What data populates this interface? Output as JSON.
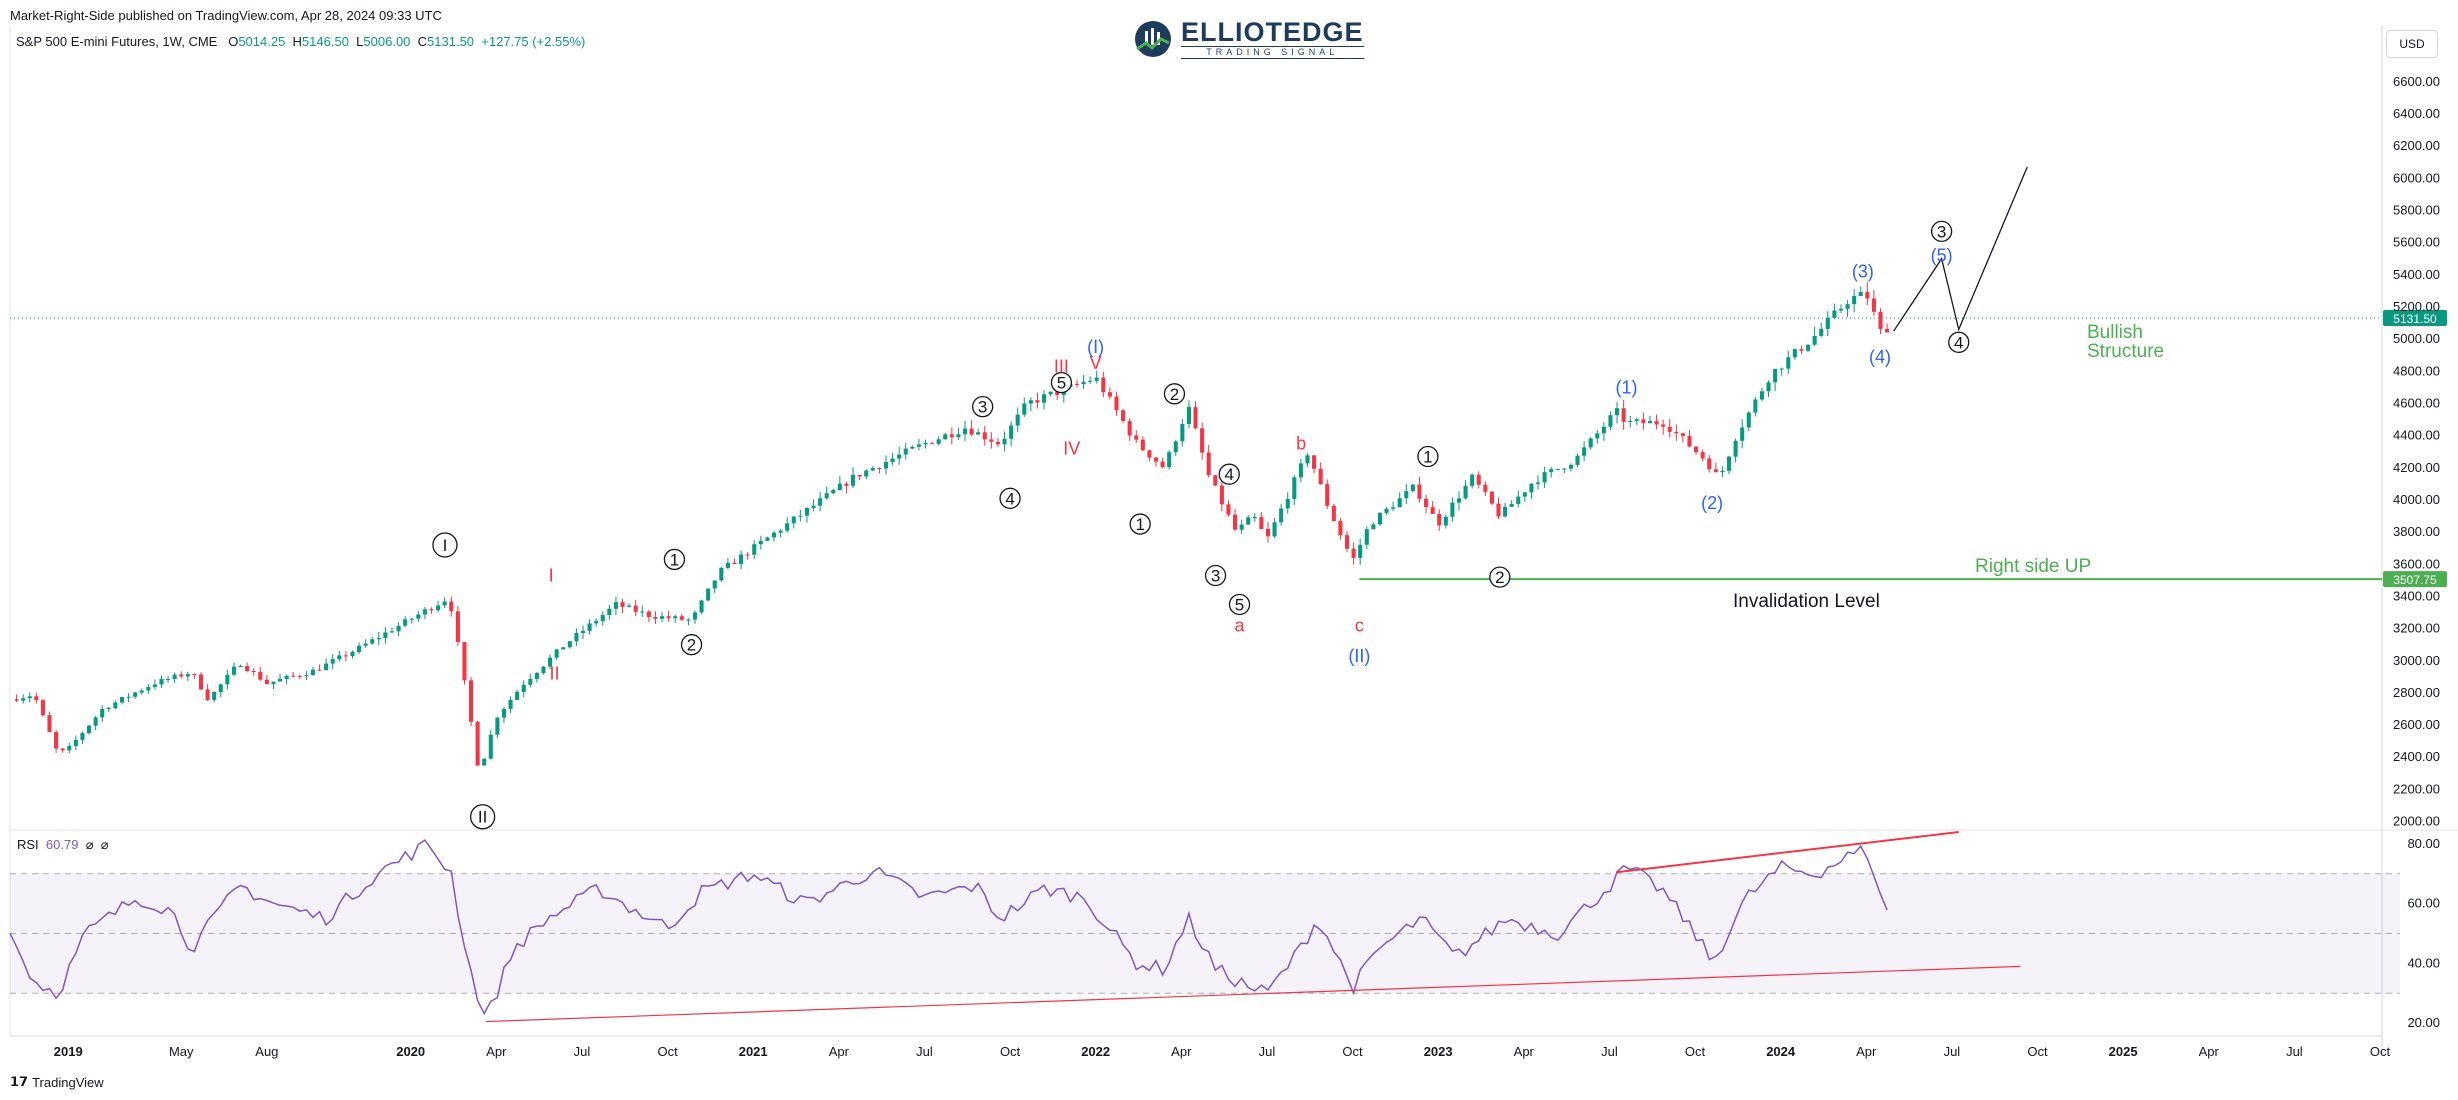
{
  "header": {
    "published": "Market-Right-Side published on TradingView.com, Apr 28, 2024 09:33 UTC",
    "symbol": "S&P 500 E-mini Futures, 1W, CME",
    "o_label": "O",
    "o": "5014.25",
    "h_label": "H",
    "h": "5146.50",
    "l_label": "L",
    "l": "5006.00",
    "c_label": "C",
    "c": "5131.50",
    "change": "+127.75 (+2.55%)"
  },
  "logo": {
    "brand_a": "ELLIOT",
    "brand_b": "EDGE",
    "tagline": "TRADING SIGNAL"
  },
  "currency": "USD",
  "footer": {
    "brand": "TradingView"
  },
  "rsi": {
    "label": "RSI",
    "value": "60.79",
    "extra1": "⌀",
    "extra2": "⌀"
  },
  "colors": {
    "up": "#089981",
    "down": "#f23645",
    "rsi": "#7e57c2",
    "green": "#4caf50",
    "blue": "#2962ff",
    "red": "#f23645"
  },
  "chart_data": {
    "type": "candlestick",
    "title": "S&P 500 E-mini Futures, 1W, CME",
    "price_axis": [
      "6600.00",
      "6400.00",
      "6200.00",
      "6000.00",
      "5800.00",
      "5600.00",
      "5400.00",
      "5200.00",
      "5000.00",
      "4800.00",
      "4600.00",
      "4400.00",
      "4200.00",
      "4000.00",
      "3800.00",
      "3600.00",
      "3400.00",
      "3200.00",
      "3000.00",
      "2800.00",
      "2600.00",
      "2400.00",
      "2200.00",
      "2000.00"
    ],
    "ylim": [
      1960,
      6860
    ],
    "rsi_axis": [
      "80.00",
      "60.00",
      "40.00",
      "20.00"
    ],
    "rsi_lim": [
      16,
      84
    ],
    "time_axis": [
      {
        "label": "2019",
        "t": 2019.0,
        "bold": true
      },
      {
        "label": "May",
        "t": 2019.33
      },
      {
        "label": "Aug",
        "t": 2019.58
      },
      {
        "label": "2020",
        "t": 2020.0,
        "bold": true
      },
      {
        "label": "Apr",
        "t": 2020.25
      },
      {
        "label": "Jul",
        "t": 2020.5
      },
      {
        "label": "Oct",
        "t": 2020.75
      },
      {
        "label": "2021",
        "t": 2021.0,
        "bold": true
      },
      {
        "label": "Apr",
        "t": 2021.25
      },
      {
        "label": "Jul",
        "t": 2021.5
      },
      {
        "label": "Oct",
        "t": 2021.75
      },
      {
        "label": "2022",
        "t": 2022.0,
        "bold": true
      },
      {
        "label": "Apr",
        "t": 2022.25
      },
      {
        "label": "Jul",
        "t": 2022.5
      },
      {
        "label": "Oct",
        "t": 2022.75
      },
      {
        "label": "2023",
        "t": 2023.0,
        "bold": true
      },
      {
        "label": "Apr",
        "t": 2023.25
      },
      {
        "label": "Jul",
        "t": 2023.5
      },
      {
        "label": "Oct",
        "t": 2023.75
      },
      {
        "label": "2024",
        "t": 2024.0,
        "bold": true
      },
      {
        "label": "Apr",
        "t": 2024.25
      },
      {
        "label": "Jul",
        "t": 2024.5
      },
      {
        "label": "Oct",
        "t": 2024.75
      },
      {
        "label": "2025",
        "t": 2025.0,
        "bold": true
      },
      {
        "label": "Apr",
        "t": 2025.25
      },
      {
        "label": "Jul",
        "t": 2025.5
      },
      {
        "label": "Oct",
        "t": 2025.75
      }
    ],
    "xlim": [
      2018.83,
      2025.75
    ],
    "price_anchors": [
      [
        2018.83,
        2760
      ],
      [
        2018.9,
        2790
      ],
      [
        2018.97,
        2420
      ],
      [
        2019.0,
        2450
      ],
      [
        2019.1,
        2700
      ],
      [
        2019.25,
        2860
      ],
      [
        2019.36,
        2930
      ],
      [
        2019.41,
        2760
      ],
      [
        2019.5,
        2990
      ],
      [
        2019.58,
        2860
      ],
      [
        2019.72,
        2940
      ],
      [
        2019.85,
        3080
      ],
      [
        2020.1,
        3380
      ],
      [
        2020.12,
        3320
      ],
      [
        2020.17,
        2700
      ],
      [
        2020.2,
        2300
      ],
      [
        2020.25,
        2650
      ],
      [
        2020.33,
        2860
      ],
      [
        2020.45,
        3100
      ],
      [
        2020.6,
        3350
      ],
      [
        2020.7,
        3280
      ],
      [
        2020.82,
        3250
      ],
      [
        2020.9,
        3550
      ],
      [
        2021.1,
        3850
      ],
      [
        2021.3,
        4150
      ],
      [
        2021.5,
        4350
      ],
      [
        2021.62,
        4450
      ],
      [
        2021.72,
        4350
      ],
      [
        2021.8,
        4600
      ],
      [
        2021.95,
        4720
      ],
      [
        2022.0,
        4760
      ],
      [
        2022.12,
        4350
      ],
      [
        2022.2,
        4200
      ],
      [
        2022.27,
        4580
      ],
      [
        2022.33,
        4150
      ],
      [
        2022.41,
        3800
      ],
      [
        2022.46,
        3900
      ],
      [
        2022.5,
        3750
      ],
      [
        2022.55,
        3980
      ],
      [
        2022.62,
        4300
      ],
      [
        2022.68,
        3950
      ],
      [
        2022.75,
        3620
      ],
      [
        2022.8,
        3850
      ],
      [
        2022.93,
        4080
      ],
      [
        2023.0,
        3850
      ],
      [
        2023.1,
        4140
      ],
      [
        2023.18,
        3900
      ],
      [
        2023.28,
        4120
      ],
      [
        2023.4,
        4250
      ],
      [
        2023.52,
        4550
      ],
      [
        2023.55,
        4480
      ],
      [
        2023.66,
        4480
      ],
      [
        2023.78,
        4250
      ],
      [
        2023.82,
        4130
      ],
      [
        2023.87,
        4400
      ],
      [
        2023.97,
        4780
      ],
      [
        2024.1,
        5020
      ],
      [
        2024.2,
        5250
      ],
      [
        2024.25,
        5280
      ],
      [
        2024.3,
        5000
      ],
      [
        2024.32,
        5131.5
      ]
    ],
    "last_price": "5131.50",
    "invalidation_price": "3507.75",
    "rsi_anchors": [
      [
        2018.83,
        50
      ],
      [
        2018.9,
        34
      ],
      [
        2018.97,
        30
      ],
      [
        2019.05,
        50
      ],
      [
        2019.2,
        62
      ],
      [
        2019.3,
        58
      ],
      [
        2019.36,
        45
      ],
      [
        2019.5,
        66
      ],
      [
        2019.6,
        60
      ],
      [
        2019.75,
        55
      ],
      [
        2019.9,
        70
      ],
      [
        2020.05,
        80
      ],
      [
        2020.12,
        70
      ],
      [
        2020.15,
        50
      ],
      [
        2020.18,
        35
      ],
      [
        2020.22,
        21
      ],
      [
        2020.3,
        45
      ],
      [
        2020.4,
        55
      ],
      [
        2020.55,
        65
      ],
      [
        2020.65,
        58
      ],
      [
        2020.75,
        52
      ],
      [
        2020.85,
        64
      ],
      [
        2021.0,
        70
      ],
      [
        2021.15,
        60
      ],
      [
        2021.35,
        71
      ],
      [
        2021.5,
        62
      ],
      [
        2021.65,
        66
      ],
      [
        2021.72,
        55
      ],
      [
        2021.85,
        65
      ],
      [
        2021.97,
        62
      ],
      [
        2022.05,
        50
      ],
      [
        2022.12,
        40
      ],
      [
        2022.2,
        38
      ],
      [
        2022.27,
        55
      ],
      [
        2022.35,
        38
      ],
      [
        2022.45,
        32
      ],
      [
        2022.5,
        30
      ],
      [
        2022.58,
        42
      ],
      [
        2022.65,
        55
      ],
      [
        2022.75,
        32
      ],
      [
        2022.83,
        45
      ],
      [
        2022.95,
        55
      ],
      [
        2023.05,
        42
      ],
      [
        2023.2,
        55
      ],
      [
        2023.35,
        50
      ],
      [
        2023.5,
        66
      ],
      [
        2023.55,
        72
      ],
      [
        2023.65,
        65
      ],
      [
        2023.75,
        50
      ],
      [
        2023.8,
        40
      ],
      [
        2023.9,
        62
      ],
      [
        2024.0,
        72
      ],
      [
        2024.1,
        70
      ],
      [
        2024.2,
        76
      ],
      [
        2024.25,
        78
      ],
      [
        2024.28,
        68
      ],
      [
        2024.3,
        57
      ],
      [
        2024.32,
        60.79
      ]
    ],
    "wave_labels": [
      {
        "text": "I",
        "t": 2020.1,
        "p": 3720,
        "color": "black",
        "circle": true,
        "double": true
      },
      {
        "text": "II",
        "t": 2020.21,
        "p": 2030,
        "color": "black",
        "circle": true,
        "double": true
      },
      {
        "text": "I",
        "t": 2020.41,
        "p": 3530,
        "color": "red"
      },
      {
        "text": "II",
        "t": 2020.42,
        "p": 2920,
        "color": "red"
      },
      {
        "text": "1",
        "t": 2020.77,
        "p": 3630,
        "color": "black",
        "circle": true
      },
      {
        "text": "2",
        "t": 2020.82,
        "p": 3100,
        "color": "black",
        "circle": true
      },
      {
        "text": "3",
        "t": 2021.67,
        "p": 4580,
        "color": "black",
        "circle": true
      },
      {
        "text": "4",
        "t": 2021.75,
        "p": 4010,
        "color": "black",
        "circle": true
      },
      {
        "text": "5",
        "t": 2021.9,
        "p": 4730,
        "color": "black",
        "circle": true
      },
      {
        "text": "III",
        "t": 2021.9,
        "p": 4830,
        "color": "red"
      },
      {
        "text": "IV",
        "t": 2021.93,
        "p": 4320,
        "color": "red"
      },
      {
        "text": "V",
        "t": 2022.0,
        "p": 4850,
        "color": "red"
      },
      {
        "text": "(I)",
        "t": 2022.0,
        "p": 4950,
        "color": "blue"
      },
      {
        "text": "2",
        "t": 2022.23,
        "p": 4660,
        "color": "black",
        "circle": true
      },
      {
        "text": "1",
        "t": 2022.13,
        "p": 3850,
        "color": "black",
        "circle": true
      },
      {
        "text": "4",
        "t": 2022.39,
        "p": 4160,
        "color": "black",
        "circle": true
      },
      {
        "text": "3",
        "t": 2022.35,
        "p": 3530,
        "color": "black",
        "circle": true
      },
      {
        "text": "5",
        "t": 2022.42,
        "p": 3350,
        "color": "black",
        "circle": true
      },
      {
        "text": "a",
        "t": 2022.42,
        "p": 3220,
        "color": "red"
      },
      {
        "text": "b",
        "t": 2022.6,
        "p": 4350,
        "color": "red"
      },
      {
        "text": "c",
        "t": 2022.77,
        "p": 3220,
        "color": "red"
      },
      {
        "text": "(II)",
        "t": 2022.77,
        "p": 3030,
        "color": "blue"
      },
      {
        "text": "1",
        "t": 2022.97,
        "p": 4270,
        "color": "black",
        "circle": true
      },
      {
        "text": "2",
        "t": 2023.18,
        "p": 3520,
        "color": "black",
        "circle": true
      },
      {
        "text": "(1)",
        "t": 2023.55,
        "p": 4700,
        "color": "blue"
      },
      {
        "text": "(2)",
        "t": 2023.8,
        "p": 3980,
        "color": "blue"
      },
      {
        "text": "(3)",
        "t": 2024.24,
        "p": 5420,
        "color": "blue"
      },
      {
        "text": "(4)",
        "t": 2024.29,
        "p": 4890,
        "color": "blue"
      },
      {
        "text": "3",
        "t": 2024.47,
        "p": 5670,
        "color": "black",
        "circle": true
      },
      {
        "text": "(5)",
        "t": 2024.47,
        "p": 5520,
        "color": "blue"
      },
      {
        "text": "4",
        "t": 2024.52,
        "p": 4980,
        "color": "black",
        "circle": true
      }
    ],
    "projection": [
      [
        2024.33,
        5050
      ],
      [
        2024.47,
        5500
      ],
      [
        2024.52,
        5060
      ],
      [
        2024.72,
        6070
      ]
    ],
    "annotations": {
      "bullish_line1": "Bullish",
      "bullish_line2": "Structure",
      "right_side": "Right side UP",
      "invalidation": "Invalidation Level"
    }
  }
}
